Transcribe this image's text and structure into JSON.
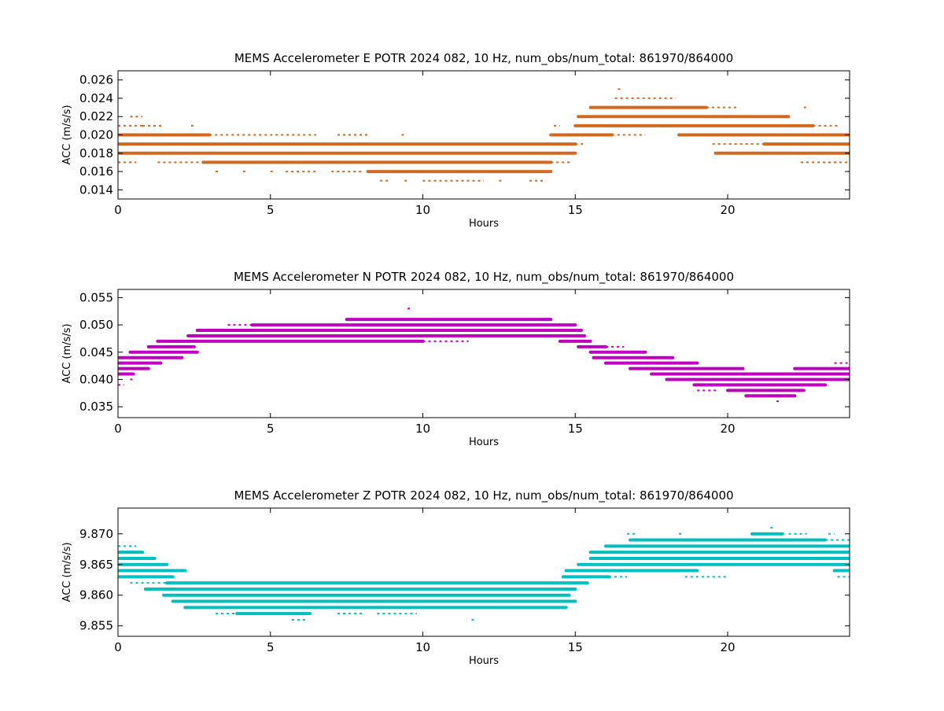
{
  "chart_data": [
    {
      "type": "scatter",
      "title": "MEMS Accelerometer E POTR 2024 082, 10 Hz, num_obs/num_total: 861970/864000",
      "xlabel": "Hours",
      "ylabel": "ACC (m/s/s)",
      "xlim": [
        0,
        24
      ],
      "ylim": [
        0.013,
        0.027
      ],
      "xticks": [
        0,
        5,
        10,
        15,
        20
      ],
      "yticks": [
        0.014,
        0.016,
        0.018,
        0.02,
        0.022,
        0.024,
        0.026
      ],
      "ytick_labels": [
        "0.014",
        "0.016",
        "0.018",
        "0.020",
        "0.022",
        "0.024",
        "0.026"
      ],
      "grid": false,
      "color": "#d2691e",
      "levels": [
        {
          "y": 0.025,
          "segments": [
            [
              16.4,
              16.5,
              "dot"
            ]
          ]
        },
        {
          "y": 0.024,
          "segments": [
            [
              16.3,
              18.3,
              "dot"
            ]
          ]
        },
        {
          "y": 0.023,
          "segments": [
            [
              15.5,
              19.3,
              "band"
            ],
            [
              19.3,
              20.3,
              "dot"
            ],
            [
              22.5,
              22.6,
              "dot"
            ]
          ]
        },
        {
          "y": 0.022,
          "segments": [
            [
              0.4,
              0.8,
              "dot"
            ],
            [
              15.1,
              22.0,
              "band"
            ]
          ]
        },
        {
          "y": 0.021,
          "segments": [
            [
              0.0,
              0.8,
              "dot"
            ],
            [
              0.8,
              1.5,
              "dot"
            ],
            [
              2.4,
              2.5,
              "dot"
            ],
            [
              14.3,
              14.5,
              "dot"
            ],
            [
              15.0,
              22.8,
              "band"
            ],
            [
              22.8,
              23.6,
              "dot"
            ]
          ]
        },
        {
          "y": 0.02,
          "segments": [
            [
              0.0,
              3.0,
              "band"
            ],
            [
              3.0,
              6.5,
              "dot"
            ],
            [
              7.2,
              8.2,
              "dot"
            ],
            [
              9.3,
              9.4,
              "dot"
            ],
            [
              14.2,
              16.2,
              "band"
            ],
            [
              16.2,
              17.3,
              "dot"
            ],
            [
              18.4,
              24.0,
              "band"
            ]
          ]
        },
        {
          "y": 0.019,
          "segments": [
            [
              0.0,
              15.0,
              "band"
            ],
            [
              15.0,
              15.3,
              "dot"
            ],
            [
              19.5,
              21.2,
              "dot"
            ],
            [
              21.2,
              24.0,
              "band"
            ]
          ]
        },
        {
          "y": 0.018,
          "segments": [
            [
              0.0,
              15.0,
              "band"
            ],
            [
              19.6,
              24.0,
              "band"
            ]
          ]
        },
        {
          "y": 0.017,
          "segments": [
            [
              0.0,
              0.6,
              "dot"
            ],
            [
              1.3,
              2.8,
              "dot"
            ],
            [
              2.8,
              14.2,
              "band"
            ],
            [
              14.2,
              14.9,
              "dot"
            ],
            [
              22.4,
              24.0,
              "dot"
            ]
          ]
        },
        {
          "y": 0.016,
          "segments": [
            [
              3.2,
              3.3,
              "dot"
            ],
            [
              4.1,
              4.2,
              "dot"
            ],
            [
              5.0,
              5.1,
              "dot"
            ],
            [
              5.5,
              6.5,
              "dot"
            ],
            [
              7.0,
              8.0,
              "dot"
            ],
            [
              8.2,
              14.2,
              "band"
            ]
          ]
        },
        {
          "y": 0.015,
          "segments": [
            [
              8.6,
              8.9,
              "dot"
            ],
            [
              9.4,
              9.5,
              "dot"
            ],
            [
              10.0,
              12.0,
              "dot"
            ],
            [
              12.5,
              12.6,
              "dot"
            ],
            [
              13.5,
              14.0,
              "dot"
            ]
          ]
        }
      ]
    },
    {
      "type": "scatter",
      "title": "MEMS Accelerometer N POTR 2024 082, 10 Hz, num_obs/num_total: 861970/864000",
      "xlabel": "Hours",
      "ylabel": "ACC (m/s/s)",
      "xlim": [
        0,
        24
      ],
      "ylim": [
        0.033,
        0.0565
      ],
      "xticks": [
        0,
        5,
        10,
        15,
        20
      ],
      "yticks": [
        0.035,
        0.04,
        0.045,
        0.05,
        0.055
      ],
      "ytick_labels": [
        "0.035",
        "0.040",
        "0.045",
        "0.050",
        "0.055"
      ],
      "grid": false,
      "color": "#bf00bf",
      "levels": [
        {
          "y": 0.053,
          "segments": [
            [
              9.5,
              9.6,
              "dot"
            ]
          ]
        },
        {
          "y": 0.051,
          "segments": [
            [
              7.5,
              14.2,
              "band"
            ]
          ]
        },
        {
          "y": 0.05,
          "segments": [
            [
              3.6,
              4.4,
              "dot"
            ],
            [
              4.4,
              15.0,
              "band"
            ]
          ]
        },
        {
          "y": 0.049,
          "segments": [
            [
              2.6,
              15.2,
              "band"
            ]
          ]
        },
        {
          "y": 0.048,
          "segments": [
            [
              2.3,
              15.3,
              "band"
            ]
          ]
        },
        {
          "y": 0.047,
          "segments": [
            [
              1.3,
              10.0,
              "band"
            ],
            [
              10.0,
              11.5,
              "dot"
            ],
            [
              14.5,
              15.5,
              "band"
            ]
          ]
        },
        {
          "y": 0.046,
          "segments": [
            [
              1.0,
              2.5,
              "band"
            ],
            [
              15.1,
              16.0,
              "band"
            ],
            [
              16.0,
              16.6,
              "dot"
            ]
          ]
        },
        {
          "y": 0.045,
          "segments": [
            [
              0.4,
              2.6,
              "band"
            ],
            [
              15.5,
              17.3,
              "band"
            ]
          ]
        },
        {
          "y": 0.044,
          "segments": [
            [
              0.0,
              2.1,
              "band"
            ],
            [
              15.6,
              18.2,
              "band"
            ]
          ]
        },
        {
          "y": 0.043,
          "segments": [
            [
              0.0,
              1.4,
              "band"
            ],
            [
              16.0,
              19.0,
              "band"
            ],
            [
              23.5,
              24.0,
              "dot"
            ]
          ]
        },
        {
          "y": 0.042,
          "segments": [
            [
              0.0,
              1.0,
              "band"
            ],
            [
              16.8,
              20.5,
              "band"
            ],
            [
              22.2,
              24.0,
              "band"
            ]
          ]
        },
        {
          "y": 0.041,
          "segments": [
            [
              0.0,
              0.5,
              "band"
            ],
            [
              17.5,
              24.0,
              "band"
            ]
          ]
        },
        {
          "y": 0.04,
          "segments": [
            [
              0.4,
              0.5,
              "dot"
            ],
            [
              18.0,
              24.0,
              "band"
            ]
          ]
        },
        {
          "y": 0.039,
          "segments": [
            [
              0.0,
              0.2,
              "dot"
            ],
            [
              18.9,
              23.2,
              "band"
            ]
          ]
        },
        {
          "y": 0.038,
          "segments": [
            [
              19.0,
              19.7,
              "dot"
            ],
            [
              20.0,
              22.5,
              "band"
            ]
          ]
        },
        {
          "y": 0.037,
          "segments": [
            [
              20.6,
              22.2,
              "band"
            ]
          ]
        },
        {
          "y": 0.036,
          "segments": [
            [
              21.6,
              21.7,
              "dot"
            ]
          ]
        }
      ]
    },
    {
      "type": "scatter",
      "title": "MEMS Accelerometer Z POTR 2024 082, 10 Hz, num_obs/num_total: 861970/864000",
      "xlabel": "Hours",
      "ylabel": "ACC (m/s/s)",
      "xlim": [
        0,
        24
      ],
      "ylim": [
        9.8533,
        9.8742
      ],
      "xticks": [
        0,
        5,
        10,
        15,
        20
      ],
      "yticks": [
        9.855,
        9.86,
        9.865,
        9.87
      ],
      "ytick_labels": [
        "9.855",
        "9.860",
        "9.865",
        "9.870"
      ],
      "grid": false,
      "color": "#00bfbf",
      "levels": [
        {
          "y": 9.871,
          "segments": [
            [
              21.4,
              21.5,
              "dot"
            ]
          ]
        },
        {
          "y": 9.87,
          "segments": [
            [
              16.7,
              17.0,
              "dot"
            ],
            [
              18.4,
              18.5,
              "dot"
            ],
            [
              20.8,
              21.8,
              "band"
            ],
            [
              22.0,
              22.6,
              "dot"
            ],
            [
              23.3,
              23.5,
              "dot"
            ]
          ]
        },
        {
          "y": 9.869,
          "segments": [
            [
              16.8,
              23.2,
              "band"
            ],
            [
              23.2,
              24.0,
              "dot"
            ]
          ]
        },
        {
          "y": 9.868,
          "segments": [
            [
              0.0,
              0.6,
              "dot"
            ],
            [
              16.0,
              24.0,
              "band"
            ]
          ]
        },
        {
          "y": 9.867,
          "segments": [
            [
              0.0,
              0.8,
              "band"
            ],
            [
              15.5,
              24.0,
              "band"
            ]
          ]
        },
        {
          "y": 9.866,
          "segments": [
            [
              0.0,
              1.2,
              "band"
            ],
            [
              15.5,
              24.0,
              "band"
            ]
          ]
        },
        {
          "y": 9.865,
          "segments": [
            [
              0.0,
              1.6,
              "band"
            ],
            [
              15.1,
              24.0,
              "band"
            ]
          ]
        },
        {
          "y": 9.864,
          "segments": [
            [
              0.0,
              2.2,
              "band"
            ],
            [
              14.7,
              19.0,
              "band"
            ],
            [
              23.5,
              24.0,
              "band"
            ]
          ]
        },
        {
          "y": 9.863,
          "segments": [
            [
              0.0,
              1.8,
              "band"
            ],
            [
              14.6,
              16.1,
              "band"
            ],
            [
              16.1,
              16.7,
              "dot"
            ],
            [
              18.6,
              20.0,
              "dot"
            ],
            [
              23.6,
              24.0,
              "dot"
            ]
          ]
        },
        {
          "y": 9.862,
          "segments": [
            [
              0.4,
              1.6,
              "dot"
            ],
            [
              1.6,
              14.5,
              "band"
            ],
            [
              14.5,
              15.4,
              "band"
            ]
          ]
        },
        {
          "y": 9.861,
          "segments": [
            [
              0.9,
              15.0,
              "band"
            ]
          ]
        },
        {
          "y": 9.86,
          "segments": [
            [
              1.5,
              14.8,
              "band"
            ]
          ]
        },
        {
          "y": 9.859,
          "segments": [
            [
              1.8,
              15.0,
              "band"
            ]
          ]
        },
        {
          "y": 9.858,
          "segments": [
            [
              2.2,
              14.7,
              "band"
            ]
          ]
        },
        {
          "y": 9.857,
          "segments": [
            [
              3.2,
              3.9,
              "dot"
            ],
            [
              3.9,
              6.3,
              "band"
            ],
            [
              7.2,
              8.0,
              "dot"
            ],
            [
              8.5,
              9.8,
              "dot"
            ]
          ]
        },
        {
          "y": 9.856,
          "segments": [
            [
              5.7,
              6.2,
              "dot"
            ],
            [
              11.6,
              11.7,
              "dot"
            ]
          ]
        }
      ]
    }
  ]
}
